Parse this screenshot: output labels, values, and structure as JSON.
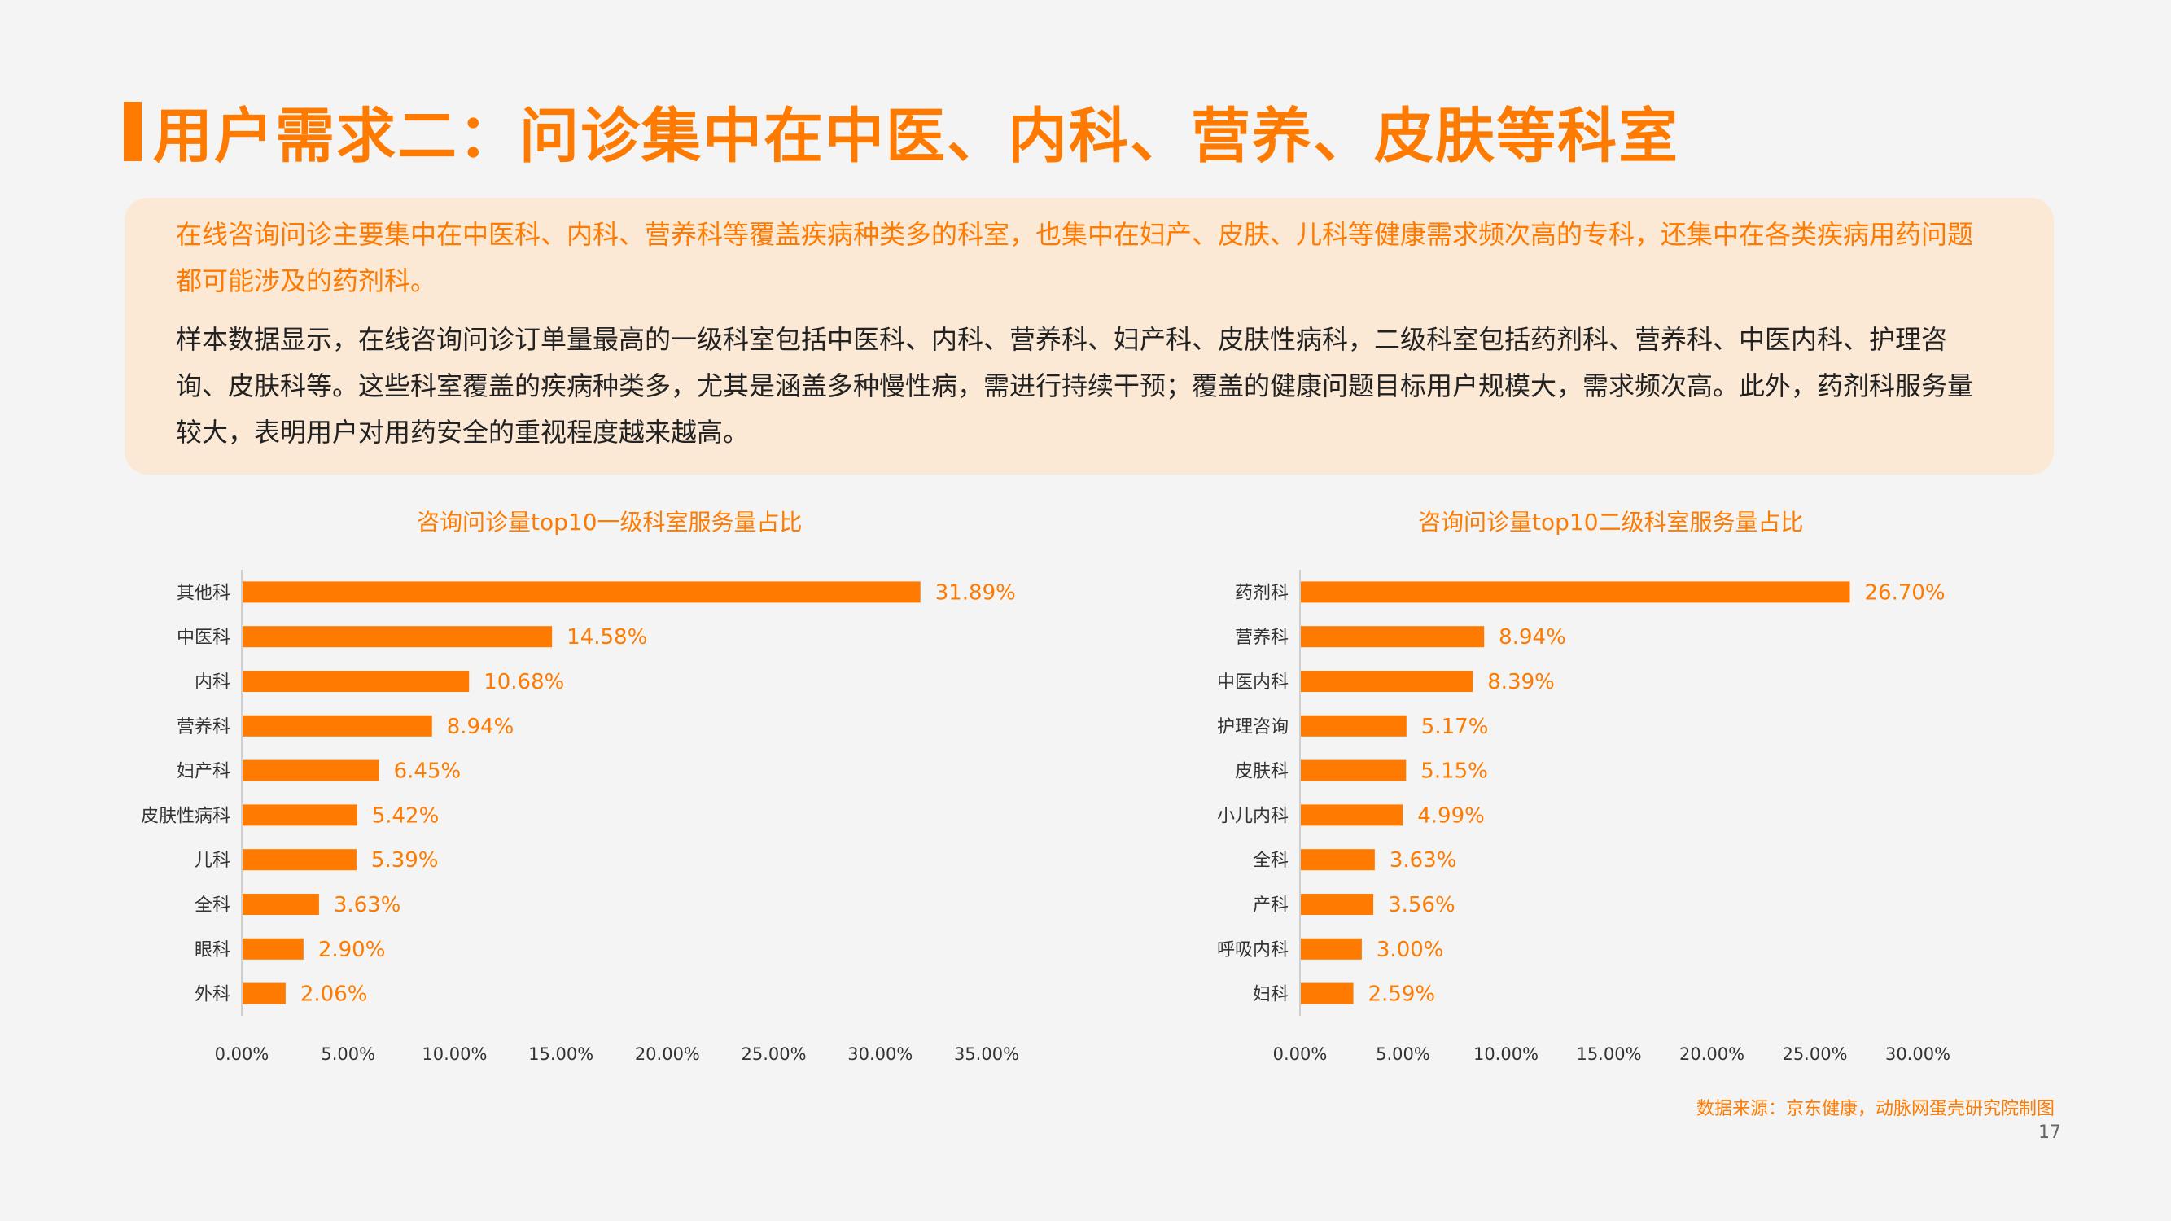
{
  "title": "用户需求二：问诊集中在中医、内科、营养、皮肤等科室",
  "summary": {
    "p1": "在线咨询问诊主要集中在中医科、内科、营养科等覆盖疾病种类多的科室，也集中在妇产、皮肤、儿科等健康需求频次高的专科，还集中在各类疾病用药问题都可能涉及的药剂科。",
    "p2": "样本数据显示，在线咨询问诊订单量最高的一级科室包括中医科、内科、营养科、妇产科、皮肤性病科，二级科室包括药剂科、营养科、中医内科、护理咨询、皮肤科等。这些科室覆盖的疾病种类多，尤其是涵盖多种慢性病，需进行持续干预；覆盖的健康问题目标用户规模大，需求频次高。此外，药剂科服务量较大，表明用户对用药安全的重视程度越来越高。"
  },
  "colors": {
    "accent": "#ff7a00",
    "summary_bg": "#fbe9d6",
    "background": "#f4f4f4"
  },
  "chart_data": [
    {
      "type": "bar",
      "orientation": "horizontal",
      "title": "咨询问诊量top10一级科室服务量占比",
      "categories": [
        "其他科",
        "中医科",
        "内科",
        "营养科",
        "妇产科",
        "皮肤性病科",
        "儿科",
        "全科",
        "眼科",
        "外科"
      ],
      "values": [
        31.89,
        14.58,
        10.68,
        8.94,
        6.45,
        5.42,
        5.39,
        3.63,
        2.9,
        2.06
      ],
      "labels": [
        "31.89%",
        "14.58%",
        "10.68%",
        "8.94%",
        "6.45%",
        "5.42%",
        "5.39%",
        "3.63%",
        "2.90%",
        "2.06%"
      ],
      "xlim": [
        0,
        35
      ],
      "xticks": [
        "0.00%",
        "5.00%",
        "10.00%",
        "15.00%",
        "20.00%",
        "25.00%",
        "30.00%",
        "35.00%"
      ],
      "grid": false
    },
    {
      "type": "bar",
      "orientation": "horizontal",
      "title": "咨询问诊量top10二级科室服务量占比",
      "categories": [
        "药剂科",
        "营养科",
        "中医内科",
        "护理咨询",
        "皮肤科",
        "小儿内科",
        "全科",
        "产科",
        "呼吸内科",
        "妇科"
      ],
      "values": [
        26.7,
        8.94,
        8.39,
        5.17,
        5.15,
        4.99,
        3.63,
        3.56,
        3.0,
        2.59
      ],
      "labels": [
        "26.70%",
        "8.94%",
        "8.39%",
        "5.17%",
        "5.15%",
        "4.99%",
        "3.63%",
        "3.56%",
        "3.00%",
        "2.59%"
      ],
      "xlim": [
        0,
        30
      ],
      "xticks": [
        "0.00%",
        "5.00%",
        "10.00%",
        "15.00%",
        "20.00%",
        "25.00%",
        "30.00%"
      ],
      "grid": false
    }
  ],
  "footer": {
    "source": "数据来源：京东健康，动脉网蛋壳研究院制图",
    "page_number": "17"
  }
}
